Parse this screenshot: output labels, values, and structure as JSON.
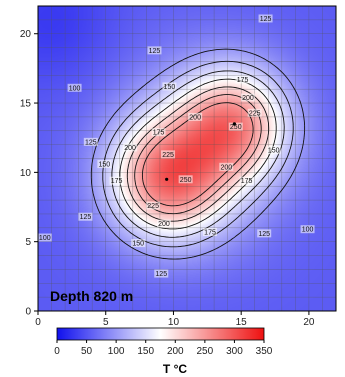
{
  "chart_data": {
    "type": "heatmap",
    "title": "",
    "xlabel": "",
    "ylabel": "",
    "xlim": [
      0,
      22
    ],
    "ylim": [
      0,
      22
    ],
    "x_ticks": [
      0,
      5,
      10,
      15,
      20
    ],
    "y_ticks": [
      0,
      5,
      10,
      15,
      20
    ],
    "grid": true,
    "annotation": "Depth 820 m",
    "colorbar": {
      "label": "T °C",
      "range": [
        0,
        350
      ],
      "ticks": [
        0,
        50,
        100,
        150,
        200,
        250,
        300,
        350
      ],
      "colors": [
        "#1010ee",
        "#ffffff",
        "#ee1010"
      ]
    },
    "hot_spots": [
      {
        "x": 9.5,
        "y": 9.5,
        "peak": 275
      },
      {
        "x": 14.5,
        "y": 13.5,
        "peak": 260
      }
    ],
    "contour_levels": [
      100,
      125,
      150,
      175,
      200,
      225,
      250
    ],
    "contour_labels": [
      {
        "text": "125",
        "x": 16.8,
        "y": 21.1
      },
      {
        "text": "125",
        "x": 8.6,
        "y": 18.8
      },
      {
        "text": "100",
        "x": 2.7,
        "y": 16.1
      },
      {
        "text": "150",
        "x": 9.7,
        "y": 16.2
      },
      {
        "text": "175",
        "x": 15.1,
        "y": 16.7
      },
      {
        "text": "200",
        "x": 15.5,
        "y": 15.4
      },
      {
        "text": "225",
        "x": 16.0,
        "y": 14.3
      },
      {
        "text": "250",
        "x": 14.6,
        "y": 13.3
      },
      {
        "text": "200",
        "x": 11.6,
        "y": 14.0
      },
      {
        "text": "175",
        "x": 8.9,
        "y": 12.9
      },
      {
        "text": "200",
        "x": 6.8,
        "y": 11.8
      },
      {
        "text": "225",
        "x": 9.6,
        "y": 11.3
      },
      {
        "text": "250",
        "x": 10.9,
        "y": 9.5
      },
      {
        "text": "125",
        "x": 3.9,
        "y": 12.2
      },
      {
        "text": "150",
        "x": 4.9,
        "y": 10.6
      },
      {
        "text": "175",
        "x": 5.8,
        "y": 9.4
      },
      {
        "text": "225",
        "x": 8.5,
        "y": 7.6
      },
      {
        "text": "200",
        "x": 9.3,
        "y": 6.3
      },
      {
        "text": "175",
        "x": 12.7,
        "y": 5.7
      },
      {
        "text": "200",
        "x": 13.9,
        "y": 10.4
      },
      {
        "text": "175",
        "x": 15.4,
        "y": 9.4
      },
      {
        "text": "150",
        "x": 17.4,
        "y": 11.6
      },
      {
        "text": "125",
        "x": 3.5,
        "y": 6.8
      },
      {
        "text": "150",
        "x": 7.4,
        "y": 4.9
      },
      {
        "text": "125",
        "x": 16.7,
        "y": 5.6
      },
      {
        "text": "100",
        "x": 19.9,
        "y": 5.9
      },
      {
        "text": "100",
        "x": 0.5,
        "y": 5.3
      },
      {
        "text": "125",
        "x": 9.1,
        "y": 2.7
      }
    ]
  }
}
